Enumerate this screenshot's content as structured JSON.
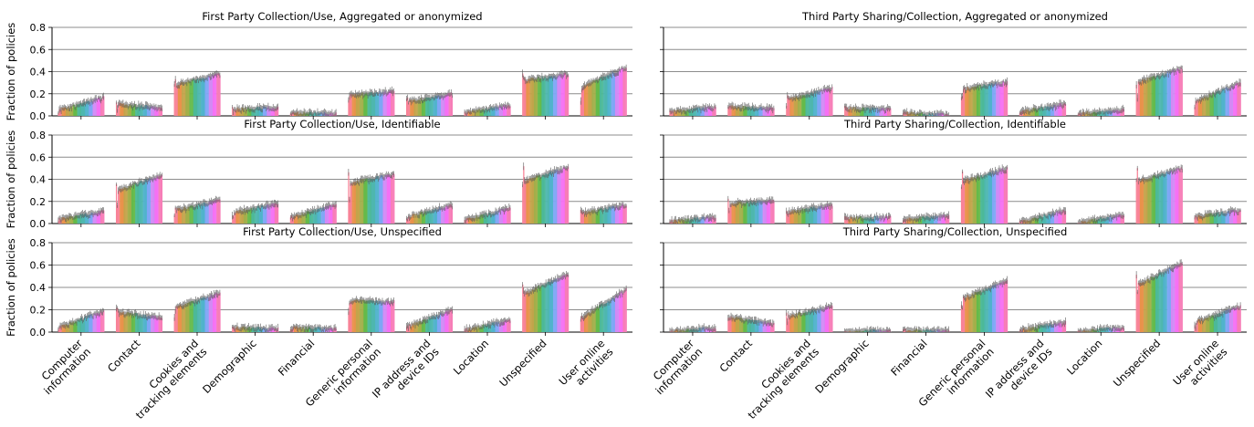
{
  "figure": {
    "ylabel": "Fraction of policies",
    "categories": [
      "Computer\ninformation",
      "Contact",
      "Cookies and\ntracking elements",
      "Demographic",
      "Financial",
      "Generic personal\ninformation",
      "IP address and\ndevice IDs",
      "Location",
      "Unspecified",
      "User online\nactivities"
    ],
    "yticks": [
      "0.0",
      "0.2",
      "0.4",
      "0.6",
      "0.8"
    ]
  },
  "chart_data": [
    {
      "type": "bar",
      "title": "First Party Collection/Use, Aggregated or anonymized",
      "ylim": [
        0,
        0.8
      ],
      "grid": true,
      "categories": [
        "Computer information",
        "Contact",
        "Cookies and tracking elements",
        "Demographic",
        "Financial",
        "Generic personal information",
        "IP address and device IDs",
        "Location",
        "Unspecified",
        "User online activities"
      ],
      "start": [
        0.05,
        0.11,
        0.28,
        0.06,
        0.03,
        0.19,
        0.13,
        0.03,
        0.32,
        0.26
      ],
      "end": [
        0.17,
        0.07,
        0.38,
        0.08,
        0.02,
        0.22,
        0.2,
        0.1,
        0.38,
        0.44
      ]
    },
    {
      "type": "bar",
      "title": "Third Party Sharing/Collection, Aggregated or anonymized",
      "ylim": [
        0,
        0.8
      ],
      "grid": true,
      "categories": [
        "Computer information",
        "Contact",
        "Cookies and tracking elements",
        "Demographic",
        "Financial",
        "Generic personal information",
        "IP address and device IDs",
        "Location",
        "Unspecified",
        "User online activities"
      ],
      "start": [
        0.04,
        0.09,
        0.15,
        0.07,
        0.03,
        0.24,
        0.04,
        0.02,
        0.3,
        0.13
      ],
      "end": [
        0.08,
        0.06,
        0.25,
        0.06,
        0.01,
        0.31,
        0.11,
        0.06,
        0.43,
        0.3
      ]
    },
    {
      "type": "bar",
      "title": "First Party Collection/Use, Identifiable",
      "ylim": [
        0,
        0.8
      ],
      "grid": true,
      "categories": [
        "Computer information",
        "Contact",
        "Cookies and tracking elements",
        "Demographic",
        "Financial",
        "Generic personal information",
        "IP address and device IDs",
        "Location",
        "Unspecified",
        "User online activities"
      ],
      "start": [
        0.04,
        0.3,
        0.12,
        0.1,
        0.06,
        0.36,
        0.06,
        0.03,
        0.38,
        0.09
      ],
      "end": [
        0.11,
        0.44,
        0.21,
        0.18,
        0.17,
        0.45,
        0.17,
        0.14,
        0.51,
        0.17
      ]
    },
    {
      "type": "bar",
      "title": "Third Party Sharing/Collection, Identifiable",
      "ylim": [
        0,
        0.8
      ],
      "grid": true,
      "categories": [
        "Computer information",
        "Contact",
        "Cookies and tracking elements",
        "Demographic",
        "Financial",
        "Generic personal information",
        "IP address and device IDs",
        "Location",
        "Unspecified",
        "User online activities"
      ],
      "start": [
        0.02,
        0.18,
        0.1,
        0.05,
        0.04,
        0.38,
        0.02,
        0.01,
        0.38,
        0.06
      ],
      "end": [
        0.06,
        0.21,
        0.17,
        0.06,
        0.07,
        0.5,
        0.12,
        0.08,
        0.5,
        0.12
      ]
    },
    {
      "type": "bar",
      "title": "First Party Collection/Use, Unspecified",
      "ylim": [
        0,
        0.8
      ],
      "grid": true,
      "categories": [
        "Computer information",
        "Contact",
        "Cookies and tracking elements",
        "Demographic",
        "Financial",
        "Generic personal information",
        "IP address and device IDs",
        "Location",
        "Unspecified",
        "User online activities"
      ],
      "start": [
        0.04,
        0.18,
        0.22,
        0.04,
        0.04,
        0.28,
        0.05,
        0.02,
        0.34,
        0.13
      ],
      "end": [
        0.19,
        0.13,
        0.35,
        0.03,
        0.03,
        0.27,
        0.2,
        0.11,
        0.52,
        0.38
      ]
    },
    {
      "type": "bar",
      "title": "Third Party Sharing/Collection, Unspecified",
      "ylim": [
        0,
        0.8
      ],
      "grid": true,
      "categories": [
        "Computer information",
        "Contact",
        "Cookies and tracking elements",
        "Demographic",
        "Financial",
        "Generic personal information",
        "IP address and device IDs",
        "Location",
        "Unspecified",
        "User online activities"
      ],
      "start": [
        0.01,
        0.14,
        0.14,
        0.01,
        0.02,
        0.3,
        0.02,
        0.01,
        0.42,
        0.09
      ],
      "end": [
        0.04,
        0.07,
        0.23,
        0.01,
        0.01,
        0.46,
        0.09,
        0.04,
        0.62,
        0.23
      ]
    }
  ]
}
